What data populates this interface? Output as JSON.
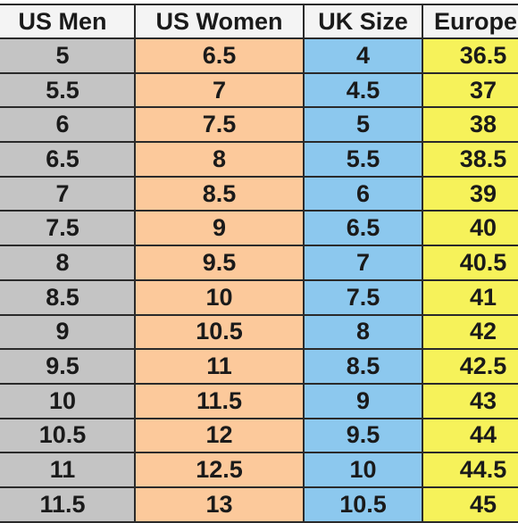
{
  "table": {
    "headers": [
      "US Men",
      "US Women",
      "UK Size",
      "Europe"
    ],
    "rows": [
      [
        "5",
        "6.5",
        "4",
        "36.5"
      ],
      [
        "5.5",
        "7",
        "4.5",
        "37"
      ],
      [
        "6",
        "7.5",
        "5",
        "38"
      ],
      [
        "6.5",
        "8",
        "5.5",
        "38.5"
      ],
      [
        "7",
        "8.5",
        "6",
        "39"
      ],
      [
        "7.5",
        "9",
        "6.5",
        "40"
      ],
      [
        "8",
        "9.5",
        "7",
        "40.5"
      ],
      [
        "8.5",
        "10",
        "7.5",
        "41"
      ],
      [
        "9",
        "10.5",
        "8",
        "42"
      ],
      [
        "9.5",
        "11",
        "8.5",
        "42.5"
      ],
      [
        "10",
        "11.5",
        "9",
        "43"
      ],
      [
        "10.5",
        "12",
        "9.5",
        "44"
      ],
      [
        "11",
        "12.5",
        "10",
        "44.5"
      ],
      [
        "11.5",
        "13",
        "10.5",
        "45"
      ]
    ]
  },
  "colors": {
    "us_men": "#c4c4c4",
    "us_women": "#fcc99b",
    "uk_size": "#8cc8ee",
    "europe": "#f6f25a",
    "border": "#2a2a2a"
  }
}
